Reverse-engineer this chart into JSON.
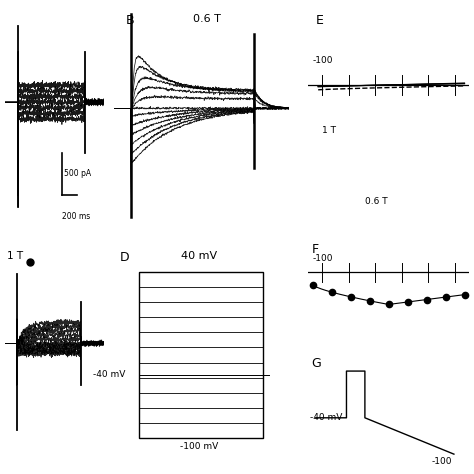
{
  "panels": {
    "B_label": "B",
    "B_subtitle": "0.6 T",
    "C_label": "1 T",
    "D_label": "D",
    "D_title": "40 mV",
    "D_bottom": "-100 mV",
    "D_mid": "-40 mV",
    "E_label": "E",
    "E_text1": "1 T",
    "E_text2": "0.6 T",
    "E_axis": "-100",
    "F_label": "F",
    "F_axis": "-100",
    "G_label": "G",
    "G_mV1": "-40 mV",
    "G_mV2": "-100",
    "scalebar_pa": "500 pA",
    "scalebar_ms": "200 ms"
  }
}
